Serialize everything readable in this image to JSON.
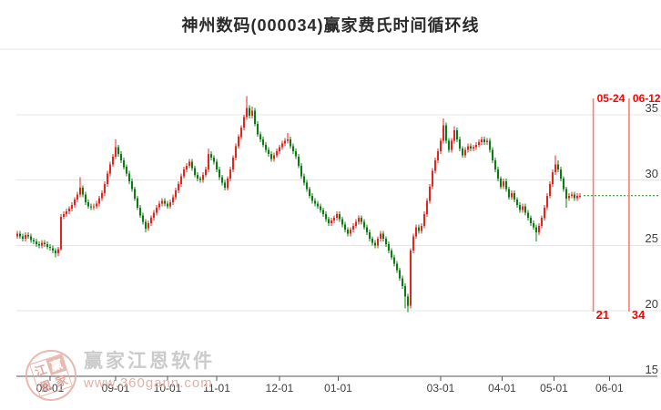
{
  "chart_data": {
    "type": "candlestick",
    "title": "神州数码(000034)赢家费氏时间循环线",
    "xlabel": "",
    "ylabel": "",
    "ylim": [
      15,
      40
    ],
    "grid": true,
    "grid_prices": [
      40,
      35,
      30,
      25,
      20
    ],
    "y_ticks": [
      {
        "label": "35",
        "price": 35
      },
      {
        "label": "30",
        "price": 30
      },
      {
        "label": "25",
        "price": 25
      },
      {
        "label": "20",
        "price": 20
      },
      {
        "label": "15",
        "price": 15
      }
    ],
    "x_ticks": [
      {
        "label": "08-01",
        "i": 12
      },
      {
        "label": "09-01",
        "i": 36
      },
      {
        "label": "10-01",
        "i": 55
      },
      {
        "label": "11-01",
        "i": 73
      },
      {
        "label": "12-01",
        "i": 96
      },
      {
        "label": "01-01",
        "i": 117.5
      },
      {
        "label": "03-01",
        "i": 155
      },
      {
        "label": "04-01",
        "i": 177.5
      },
      {
        "label": "05-01",
        "i": 196.5
      },
      {
        "label": "06-01",
        "i": 216.8
      }
    ],
    "fib_time_lines": [
      {
        "date": "05-24",
        "count": "21",
        "i": 211.2
      },
      {
        "date": "06-12",
        "count": "34",
        "i": 224.3
      }
    ],
    "last_price": 28.8,
    "candles_format": [
      "open",
      "high",
      "low",
      "close"
    ],
    "candles": [
      [
        25.7,
        26.1,
        25.5,
        25.9
      ],
      [
        25.9,
        26.1,
        25.5,
        25.7
      ],
      [
        25.7,
        25.9,
        25.3,
        25.5
      ],
      [
        25.5,
        26.0,
        25.3,
        25.8
      ],
      [
        25.8,
        26.0,
        25.5,
        25.7
      ],
      [
        25.7,
        25.9,
        25.2,
        25.4
      ],
      [
        25.4,
        25.6,
        25.1,
        25.3
      ],
      [
        25.3,
        25.5,
        24.9,
        25.1
      ],
      [
        25.1,
        25.3,
        24.8,
        25.0
      ],
      [
        25.0,
        25.4,
        24.8,
        25.2
      ],
      [
        25.2,
        25.4,
        24.9,
        25.1
      ],
      [
        25.1,
        25.3,
        24.7,
        24.9
      ],
      [
        24.9,
        25.1,
        24.6,
        24.8
      ],
      [
        24.8,
        25.0,
        24.4,
        24.6
      ],
      [
        24.6,
        24.8,
        24.1,
        24.4
      ],
      [
        24.4,
        24.9,
        24.2,
        24.7
      ],
      [
        24.7,
        27.4,
        24.6,
        27.2
      ],
      [
        27.2,
        27.6,
        27.0,
        27.4
      ],
      [
        27.4,
        27.8,
        27.2,
        27.6
      ],
      [
        27.6,
        28.0,
        27.4,
        27.8
      ],
      [
        27.8,
        28.3,
        27.6,
        28.1
      ],
      [
        28.1,
        28.7,
        27.9,
        28.5
      ],
      [
        28.5,
        29.1,
        28.3,
        28.9
      ],
      [
        28.9,
        30.2,
        28.7,
        29.4
      ],
      [
        29.4,
        29.6,
        28.7,
        28.9
      ],
      [
        28.9,
        29.1,
        28.1,
        28.3
      ],
      [
        28.3,
        28.5,
        27.8,
        28.0
      ],
      [
        28.0,
        28.2,
        27.7,
        27.9
      ],
      [
        27.9,
        28.2,
        27.7,
        28.0
      ],
      [
        28.0,
        28.4,
        27.8,
        28.2
      ],
      [
        28.2,
        28.8,
        28.0,
        28.6
      ],
      [
        28.6,
        29.2,
        28.4,
        29.0
      ],
      [
        29.0,
        29.9,
        28.8,
        29.7
      ],
      [
        29.7,
        30.7,
        29.5,
        30.5
      ],
      [
        30.5,
        31.4,
        30.3,
        31.2
      ],
      [
        31.2,
        32.0,
        31.0,
        31.8
      ],
      [
        31.8,
        33.1,
        31.6,
        32.5
      ],
      [
        32.5,
        32.7,
        31.8,
        32.0
      ],
      [
        32.0,
        32.2,
        31.3,
        31.5
      ],
      [
        31.5,
        31.7,
        30.8,
        31.0
      ],
      [
        31.0,
        31.2,
        30.3,
        30.5
      ],
      [
        30.5,
        30.7,
        29.7,
        29.9
      ],
      [
        29.9,
        30.1,
        29.1,
        29.3
      ],
      [
        29.3,
        29.5,
        28.4,
        28.6
      ],
      [
        28.6,
        28.8,
        27.7,
        27.9
      ],
      [
        27.9,
        28.1,
        27.1,
        27.3
      ],
      [
        27.3,
        27.5,
        26.6,
        26.8
      ],
      [
        26.8,
        27.0,
        26.0,
        26.3
      ],
      [
        26.3,
        26.9,
        26.1,
        26.7
      ],
      [
        26.7,
        27.3,
        26.5,
        27.1
      ],
      [
        27.1,
        27.7,
        26.9,
        27.5
      ],
      [
        27.5,
        28.1,
        27.3,
        27.9
      ],
      [
        27.9,
        28.4,
        27.7,
        28.2
      ],
      [
        28.2,
        28.6,
        28.0,
        28.4
      ],
      [
        28.4,
        28.6,
        28.0,
        28.2
      ],
      [
        28.2,
        28.4,
        27.8,
        28.0
      ],
      [
        28.0,
        28.5,
        27.8,
        28.3
      ],
      [
        28.3,
        28.9,
        28.1,
        28.7
      ],
      [
        28.7,
        29.4,
        28.5,
        29.2
      ],
      [
        29.2,
        29.9,
        29.0,
        29.7
      ],
      [
        29.7,
        30.5,
        29.5,
        30.3
      ],
      [
        30.3,
        31.0,
        30.1,
        30.8
      ],
      [
        30.8,
        31.3,
        30.6,
        31.1
      ],
      [
        31.1,
        31.6,
        30.9,
        31.4
      ],
      [
        31.4,
        31.6,
        30.7,
        30.9
      ],
      [
        30.9,
        31.1,
        30.2,
        30.4
      ],
      [
        30.4,
        30.6,
        29.9,
        30.1
      ],
      [
        30.1,
        30.3,
        29.8,
        30.0
      ],
      [
        30.0,
        30.6,
        29.8,
        30.4
      ],
      [
        30.4,
        31.0,
        30.2,
        30.8
      ],
      [
        30.8,
        32.4,
        30.6,
        32.0
      ],
      [
        32.0,
        32.2,
        31.5,
        31.7
      ],
      [
        31.7,
        31.9,
        31.2,
        31.4
      ],
      [
        31.4,
        31.6,
        30.6,
        30.8
      ],
      [
        30.8,
        31.0,
        30.0,
        30.2
      ],
      [
        30.2,
        30.4,
        29.6,
        29.8
      ],
      [
        29.8,
        30.0,
        29.2,
        29.4
      ],
      [
        29.4,
        30.3,
        29.2,
        30.1
      ],
      [
        30.1,
        31.0,
        29.9,
        30.8
      ],
      [
        30.8,
        31.9,
        30.6,
        31.7
      ],
      [
        31.7,
        32.8,
        31.5,
        32.6
      ],
      [
        32.6,
        33.5,
        32.4,
        33.3
      ],
      [
        33.3,
        34.2,
        33.1,
        34.0
      ],
      [
        34.0,
        35.0,
        33.8,
        34.8
      ],
      [
        34.8,
        36.4,
        34.6,
        35.5
      ],
      [
        35.5,
        35.7,
        34.7,
        34.9
      ],
      [
        34.9,
        35.6,
        34.7,
        35.3
      ],
      [
        35.3,
        35.5,
        34.1,
        34.3
      ],
      [
        34.3,
        34.5,
        33.3,
        33.5
      ],
      [
        33.5,
        33.7,
        32.9,
        33.1
      ],
      [
        33.1,
        33.3,
        32.5,
        32.7
      ],
      [
        32.7,
        32.9,
        32.1,
        32.3
      ],
      [
        32.3,
        32.5,
        31.8,
        32.0
      ],
      [
        32.0,
        32.2,
        31.4,
        31.6
      ],
      [
        31.6,
        32.1,
        31.4,
        31.9
      ],
      [
        31.9,
        32.4,
        31.7,
        32.2
      ],
      [
        32.2,
        32.7,
        32.0,
        32.5
      ],
      [
        32.5,
        33.0,
        32.3,
        32.8
      ],
      [
        32.8,
        33.2,
        32.6,
        33.0
      ],
      [
        33.0,
        33.6,
        32.8,
        33.1
      ],
      [
        33.1,
        33.3,
        32.4,
        32.6
      ],
      [
        32.6,
        32.8,
        32.0,
        32.2
      ],
      [
        32.2,
        32.4,
        31.6,
        31.8
      ],
      [
        31.8,
        32.0,
        30.9,
        31.1
      ],
      [
        31.1,
        31.3,
        30.1,
        30.3
      ],
      [
        30.3,
        30.5,
        29.6,
        29.8
      ],
      [
        29.8,
        30.0,
        29.1,
        29.3
      ],
      [
        29.3,
        29.5,
        28.6,
        28.8
      ],
      [
        28.8,
        29.0,
        28.2,
        28.4
      ],
      [
        28.4,
        28.6,
        28.0,
        28.2
      ],
      [
        28.2,
        28.4,
        27.8,
        28.0
      ],
      [
        28.0,
        28.2,
        27.5,
        27.7
      ],
      [
        27.7,
        27.9,
        27.2,
        27.4
      ],
      [
        27.4,
        27.6,
        26.8,
        27.0
      ],
      [
        27.0,
        27.2,
        26.5,
        26.7
      ],
      [
        26.7,
        27.1,
        26.5,
        26.9
      ],
      [
        26.9,
        27.3,
        26.7,
        27.1
      ],
      [
        27.1,
        27.6,
        26.9,
        27.4
      ],
      [
        27.4,
        27.6,
        26.8,
        27.0
      ],
      [
        27.0,
        27.2,
        26.4,
        26.6
      ],
      [
        26.6,
        26.8,
        26.0,
        26.2
      ],
      [
        26.2,
        26.4,
        25.7,
        25.9
      ],
      [
        25.9,
        26.4,
        25.7,
        26.2
      ],
      [
        26.2,
        26.7,
        26.0,
        26.5
      ],
      [
        26.5,
        27.0,
        26.3,
        26.8
      ],
      [
        26.8,
        27.3,
        26.6,
        27.1
      ],
      [
        27.1,
        27.3,
        26.6,
        26.8
      ],
      [
        26.8,
        27.0,
        26.2,
        26.4
      ],
      [
        26.4,
        26.6,
        25.8,
        26.0
      ],
      [
        26.0,
        26.2,
        25.3,
        25.5
      ],
      [
        25.5,
        25.7,
        25.0,
        25.2
      ],
      [
        25.2,
        25.4,
        24.8,
        25.0
      ],
      [
        25.0,
        25.7,
        24.8,
        25.5
      ],
      [
        25.5,
        26.1,
        25.3,
        25.9
      ],
      [
        25.9,
        26.1,
        25.3,
        25.5
      ],
      [
        25.5,
        25.7,
        24.9,
        25.1
      ],
      [
        25.1,
        25.3,
        24.4,
        24.6
      ],
      [
        24.6,
        24.8,
        23.9,
        24.1
      ],
      [
        24.1,
        24.3,
        23.4,
        23.6
      ],
      [
        23.6,
        23.8,
        22.9,
        23.1
      ],
      [
        23.1,
        23.3,
        22.3,
        22.5
      ],
      [
        22.5,
        22.7,
        21.7,
        21.9
      ],
      [
        21.9,
        22.1,
        20.2,
        21.1
      ],
      [
        21.1,
        21.3,
        19.9,
        20.4
      ],
      [
        20.4,
        24.8,
        20.2,
        24.6
      ],
      [
        24.6,
        25.9,
        24.4,
        25.7
      ],
      [
        25.7,
        26.6,
        25.5,
        26.4
      ],
      [
        26.4,
        26.6,
        25.9,
        26.1
      ],
      [
        26.1,
        26.7,
        25.9,
        26.5
      ],
      [
        26.5,
        27.6,
        26.3,
        27.4
      ],
      [
        27.4,
        28.6,
        27.2,
        28.4
      ],
      [
        28.4,
        29.7,
        28.2,
        29.5
      ],
      [
        29.5,
        30.9,
        29.3,
        30.7
      ],
      [
        30.7,
        31.7,
        30.5,
        31.5
      ],
      [
        31.5,
        32.4,
        31.3,
        32.2
      ],
      [
        32.2,
        33.2,
        32.0,
        33.0
      ],
      [
        33.0,
        34.7,
        32.8,
        34.2
      ],
      [
        34.2,
        34.4,
        32.8,
        33.0
      ],
      [
        33.0,
        33.2,
        32.1,
        32.3
      ],
      [
        32.3,
        33.2,
        32.1,
        33.0
      ],
      [
        33.0,
        34.1,
        32.8,
        33.8
      ],
      [
        33.8,
        34.0,
        32.9,
        33.1
      ],
      [
        33.1,
        33.3,
        32.2,
        32.4
      ],
      [
        32.4,
        32.6,
        31.7,
        31.9
      ],
      [
        31.9,
        32.5,
        31.7,
        32.3
      ],
      [
        32.3,
        32.8,
        32.1,
        32.6
      ],
      [
        32.6,
        32.8,
        32.2,
        32.4
      ],
      [
        32.4,
        32.7,
        32.2,
        32.5
      ],
      [
        32.5,
        32.9,
        32.3,
        32.7
      ],
      [
        32.7,
        33.1,
        32.5,
        32.9
      ],
      [
        32.9,
        33.3,
        32.7,
        33.1
      ],
      [
        33.1,
        33.3,
        32.7,
        32.9
      ],
      [
        32.9,
        33.2,
        32.7,
        33.0
      ],
      [
        33.0,
        33.2,
        32.1,
        32.3
      ],
      [
        32.3,
        32.5,
        31.3,
        31.5
      ],
      [
        31.5,
        31.7,
        30.6,
        30.8
      ],
      [
        30.8,
        31.0,
        29.9,
        30.1
      ],
      [
        30.1,
        30.3,
        29.3,
        29.5
      ],
      [
        29.5,
        30.1,
        29.3,
        29.9
      ],
      [
        29.9,
        30.1,
        29.1,
        29.3
      ],
      [
        29.3,
        29.5,
        28.5,
        28.7
      ],
      [
        28.7,
        29.2,
        28.5,
        29.0
      ],
      [
        29.0,
        29.2,
        28.3,
        28.5
      ],
      [
        28.5,
        28.7,
        27.9,
        28.1
      ],
      [
        28.1,
        28.3,
        27.5,
        27.7
      ],
      [
        27.7,
        28.2,
        27.5,
        28.0
      ],
      [
        28.0,
        28.2,
        27.3,
        27.5
      ],
      [
        27.5,
        27.7,
        26.9,
        27.1
      ],
      [
        27.1,
        27.3,
        26.5,
        26.7
      ],
      [
        26.7,
        26.9,
        26.2,
        26.4
      ],
      [
        26.4,
        26.6,
        25.3,
        26.0
      ],
      [
        26.0,
        26.7,
        25.8,
        26.5
      ],
      [
        26.5,
        27.3,
        26.3,
        27.1
      ],
      [
        27.1,
        28.1,
        26.9,
        27.9
      ],
      [
        27.9,
        29.0,
        27.7,
        28.8
      ],
      [
        28.8,
        29.9,
        28.6,
        29.7
      ],
      [
        29.7,
        30.8,
        29.5,
        30.6
      ],
      [
        30.6,
        31.9,
        30.4,
        31.2
      ],
      [
        31.2,
        31.5,
        30.6,
        30.8
      ],
      [
        30.8,
        31.0,
        29.9,
        30.1
      ],
      [
        30.1,
        30.3,
        29.1,
        29.3
      ],
      [
        29.3,
        29.5,
        27.9,
        28.6
      ],
      [
        28.6,
        29.0,
        28.4,
        28.8
      ],
      [
        28.8,
        29.1,
        28.6,
        28.9
      ],
      [
        28.9,
        29.1,
        28.4,
        28.6
      ],
      [
        28.6,
        29.0,
        28.4,
        28.8
      ],
      [
        28.8,
        29.0,
        28.6,
        28.8
      ]
    ],
    "colors": {
      "up_candle": "#e8231c",
      "down_candle": "#0a7c10",
      "fib_line": "#f97d72",
      "fib_label": "#ff0000",
      "last_price_line": "#128a12",
      "grid": "#e4e4e4",
      "axis": "#555555",
      "tick_label": "#3f3f3f",
      "title": "#2a2a2a"
    }
  },
  "watermark": {
    "brand": "赢家江恩软件",
    "url": "www.360gann.com",
    "seal_chars": [
      "江",
      "赢",
      "恩",
      "家"
    ]
  }
}
